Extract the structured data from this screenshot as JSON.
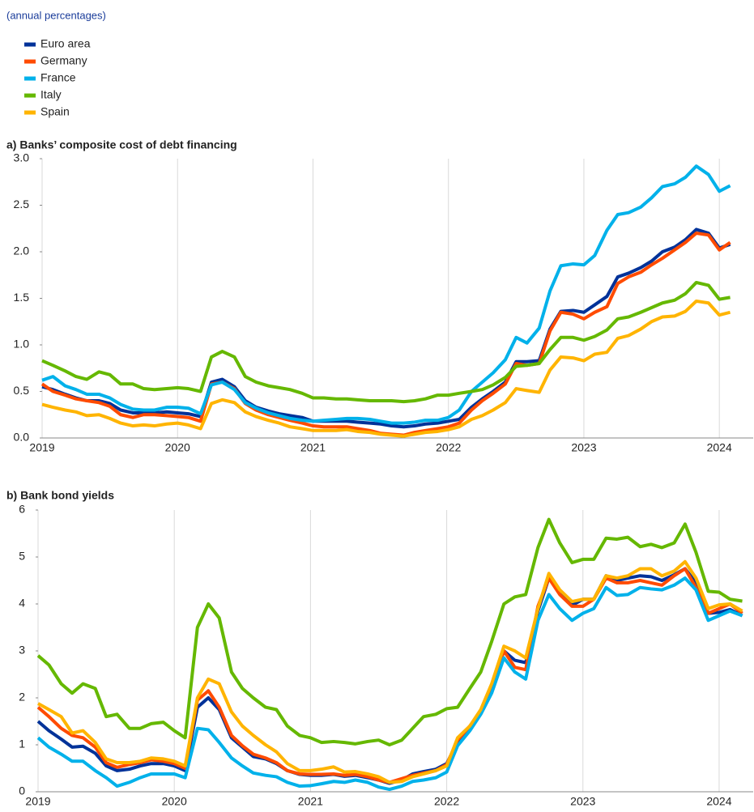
{
  "subtitle": "(annual percentages)",
  "chart_data": [
    {
      "type": "line",
      "title": "a) Banks’ composite cost of debt financing",
      "x": [
        2019,
        2019.08,
        2019.17,
        2019.25,
        2019.33,
        2019.42,
        2019.5,
        2019.58,
        2019.67,
        2019.75,
        2019.83,
        2019.92,
        2020,
        2020.08,
        2020.17,
        2020.25,
        2020.33,
        2020.42,
        2020.5,
        2020.58,
        2020.67,
        2020.75,
        2020.83,
        2020.92,
        2021,
        2021.08,
        2021.17,
        2021.25,
        2021.33,
        2021.42,
        2021.5,
        2021.58,
        2021.67,
        2021.75,
        2021.83,
        2021.92,
        2022,
        2022.08,
        2022.17,
        2022.25,
        2022.33,
        2022.42,
        2022.5,
        2022.58,
        2022.67,
        2022.75,
        2022.83,
        2022.92,
        2023,
        2023.08,
        2023.17,
        2023.25,
        2023.33,
        2023.42,
        2023.5,
        2023.58,
        2023.67,
        2023.75,
        2023.83,
        2023.92,
        2024,
        2024.08
      ],
      "xlim": [
        2019,
        2024.25
      ],
      "xticks": [
        2019,
        2020,
        2021,
        2022,
        2023,
        2024
      ],
      "ylim": [
        0,
        3
      ],
      "yticks": [
        {
          "value": 0,
          "label": "0.0"
        },
        0.5,
        {
          "value": 1,
          "label": "1.0"
        },
        1.5,
        {
          "value": 2,
          "label": "2.0"
        },
        2.5,
        {
          "value": 3,
          "label": "3.0"
        }
      ],
      "grid": true,
      "series": [
        {
          "name": "Euro area",
          "color": "#003299",
          "values": [
            0.55,
            0.52,
            0.47,
            0.43,
            0.4,
            0.4,
            0.37,
            0.3,
            0.27,
            0.27,
            0.27,
            0.28,
            0.27,
            0.26,
            0.23,
            0.6,
            0.63,
            0.55,
            0.4,
            0.33,
            0.29,
            0.26,
            0.24,
            0.22,
            0.18,
            0.18,
            0.18,
            0.18,
            0.17,
            0.16,
            0.15,
            0.13,
            0.12,
            0.13,
            0.15,
            0.16,
            0.18,
            0.2,
            0.33,
            0.42,
            0.5,
            0.6,
            0.82,
            0.82,
            0.83,
            1.17,
            1.36,
            1.37,
            1.35,
            1.43,
            1.52,
            1.73,
            1.77,
            1.83,
            1.9,
            2.0,
            2.05,
            2.13,
            2.24,
            2.2,
            2.04,
            2.08
          ]
        },
        {
          "name": "Germany",
          "color": "#ff4b00",
          "values": [
            0.58,
            0.5,
            0.46,
            0.42,
            0.4,
            0.38,
            0.34,
            0.25,
            0.22,
            0.25,
            0.25,
            0.24,
            0.23,
            0.22,
            0.18,
            0.58,
            0.6,
            0.53,
            0.37,
            0.3,
            0.25,
            0.22,
            0.19,
            0.16,
            0.13,
            0.12,
            0.12,
            0.12,
            0.1,
            0.08,
            0.05,
            0.04,
            0.03,
            0.06,
            0.08,
            0.1,
            0.12,
            0.16,
            0.3,
            0.4,
            0.48,
            0.58,
            0.8,
            0.78,
            0.8,
            1.15,
            1.35,
            1.33,
            1.28,
            1.35,
            1.41,
            1.66,
            1.73,
            1.78,
            1.86,
            1.93,
            2.02,
            2.1,
            2.2,
            2.18,
            2.02,
            2.1
          ]
        },
        {
          "name": "France",
          "color": "#00b1ea",
          "values": [
            0.62,
            0.66,
            0.56,
            0.52,
            0.47,
            0.47,
            0.43,
            0.36,
            0.31,
            0.3,
            0.3,
            0.33,
            0.33,
            0.32,
            0.26,
            0.57,
            0.6,
            0.52,
            0.38,
            0.32,
            0.27,
            0.24,
            0.21,
            0.19,
            0.18,
            0.19,
            0.2,
            0.21,
            0.21,
            0.2,
            0.18,
            0.16,
            0.16,
            0.17,
            0.19,
            0.19,
            0.22,
            0.3,
            0.5,
            0.6,
            0.7,
            0.84,
            1.08,
            1.02,
            1.18,
            1.58,
            1.85,
            1.87,
            1.86,
            1.96,
            2.23,
            2.4,
            2.42,
            2.48,
            2.58,
            2.7,
            2.73,
            2.8,
            2.92,
            2.83,
            2.65,
            2.71
          ]
        },
        {
          "name": "Italy",
          "color": "#65b800",
          "values": [
            0.83,
            0.78,
            0.72,
            0.66,
            0.63,
            0.71,
            0.68,
            0.58,
            0.58,
            0.53,
            0.52,
            0.53,
            0.54,
            0.53,
            0.5,
            0.87,
            0.93,
            0.87,
            0.66,
            0.6,
            0.56,
            0.54,
            0.52,
            0.48,
            0.43,
            0.43,
            0.42,
            0.42,
            0.41,
            0.4,
            0.4,
            0.4,
            0.39,
            0.4,
            0.42,
            0.46,
            0.46,
            0.48,
            0.5,
            0.52,
            0.57,
            0.65,
            0.77,
            0.78,
            0.8,
            0.95,
            1.08,
            1.08,
            1.05,
            1.09,
            1.16,
            1.28,
            1.3,
            1.35,
            1.4,
            1.45,
            1.48,
            1.55,
            1.67,
            1.64,
            1.49,
            1.51
          ]
        },
        {
          "name": "Spain",
          "color": "#ffb400",
          "values": [
            0.36,
            0.33,
            0.3,
            0.28,
            0.24,
            0.25,
            0.21,
            0.16,
            0.13,
            0.14,
            0.13,
            0.15,
            0.16,
            0.14,
            0.1,
            0.37,
            0.41,
            0.38,
            0.28,
            0.23,
            0.19,
            0.16,
            0.12,
            0.1,
            0.08,
            0.08,
            0.08,
            0.09,
            0.07,
            0.06,
            0.04,
            0.03,
            0.02,
            0.04,
            0.06,
            0.07,
            0.09,
            0.12,
            0.2,
            0.24,
            0.3,
            0.38,
            0.53,
            0.51,
            0.49,
            0.73,
            0.87,
            0.86,
            0.83,
            0.9,
            0.92,
            1.07,
            1.1,
            1.17,
            1.25,
            1.3,
            1.31,
            1.36,
            1.47,
            1.45,
            1.32,
            1.35
          ]
        }
      ]
    },
    {
      "type": "line",
      "title": "b) Bank bond yields",
      "x": [
        2019,
        2019.08,
        2019.17,
        2019.25,
        2019.33,
        2019.42,
        2019.5,
        2019.58,
        2019.67,
        2019.75,
        2019.83,
        2019.92,
        2020,
        2020.08,
        2020.17,
        2020.25,
        2020.33,
        2020.42,
        2020.5,
        2020.58,
        2020.67,
        2020.75,
        2020.83,
        2020.92,
        2021,
        2021.08,
        2021.17,
        2021.25,
        2021.33,
        2021.42,
        2021.5,
        2021.58,
        2021.67,
        2021.75,
        2021.83,
        2021.92,
        2022,
        2022.08,
        2022.17,
        2022.25,
        2022.33,
        2022.42,
        2022.5,
        2022.58,
        2022.67,
        2022.75,
        2022.83,
        2022.92,
        2023,
        2023.08,
        2023.17,
        2023.25,
        2023.33,
        2023.42,
        2023.5,
        2023.58,
        2023.67,
        2023.75,
        2023.83,
        2023.92,
        2024,
        2024.08,
        2024.17
      ],
      "xlim": [
        2019,
        2024.25
      ],
      "xticks": [
        2019,
        2020,
        2021,
        2022,
        2023,
        2024
      ],
      "ylim": [
        0,
        6
      ],
      "yticks": [
        0,
        1,
        2,
        3,
        4,
        5,
        6
      ],
      "grid": true,
      "series": [
        {
          "name": "Euro area",
          "color": "#003299",
          "values": [
            1.5,
            1.3,
            1.12,
            0.95,
            0.97,
            0.82,
            0.55,
            0.45,
            0.48,
            0.55,
            0.6,
            0.6,
            0.55,
            0.45,
            1.8,
            2.0,
            1.75,
            1.15,
            0.95,
            0.75,
            0.7,
            0.6,
            0.45,
            0.37,
            0.35,
            0.35,
            0.37,
            0.33,
            0.35,
            0.3,
            0.25,
            0.18,
            0.25,
            0.38,
            0.43,
            0.48,
            0.6,
            1.05,
            1.35,
            1.7,
            2.2,
            3.0,
            2.8,
            2.75,
            3.85,
            4.55,
            4.25,
            3.97,
            4.1,
            4.1,
            4.6,
            4.5,
            4.55,
            4.6,
            4.58,
            4.5,
            4.62,
            4.75,
            4.45,
            3.8,
            3.82,
            3.88,
            3.75
          ]
        },
        {
          "name": "Germany",
          "color": "#ff4b00",
          "values": [
            1.8,
            1.6,
            1.35,
            1.2,
            1.15,
            0.95,
            0.62,
            0.52,
            0.58,
            0.62,
            0.68,
            0.65,
            0.6,
            0.5,
            1.95,
            2.15,
            1.8,
            1.2,
            0.98,
            0.8,
            0.72,
            0.62,
            0.45,
            0.38,
            0.37,
            0.37,
            0.38,
            0.35,
            0.37,
            0.32,
            0.25,
            0.2,
            0.28,
            0.35,
            0.4,
            0.45,
            0.58,
            1.1,
            1.4,
            1.72,
            2.25,
            3.0,
            2.65,
            2.6,
            3.95,
            4.55,
            4.2,
            3.95,
            3.95,
            4.1,
            4.55,
            4.45,
            4.45,
            4.5,
            4.45,
            4.4,
            4.6,
            4.75,
            4.35,
            3.8,
            3.9,
            4.0,
            3.8
          ]
        },
        {
          "name": "France",
          "color": "#00b1ea",
          "values": [
            1.15,
            0.95,
            0.8,
            0.65,
            0.65,
            0.45,
            0.3,
            0.12,
            0.2,
            0.3,
            0.38,
            0.38,
            0.38,
            0.3,
            1.35,
            1.32,
            1.05,
            0.72,
            0.55,
            0.4,
            0.35,
            0.32,
            0.2,
            0.12,
            0.13,
            0.17,
            0.22,
            0.2,
            0.25,
            0.2,
            0.1,
            0.05,
            0.12,
            0.22,
            0.25,
            0.3,
            0.42,
            0.98,
            1.3,
            1.65,
            2.1,
            2.85,
            2.55,
            2.4,
            3.65,
            4.2,
            3.9,
            3.65,
            3.8,
            3.9,
            4.35,
            4.18,
            4.2,
            4.35,
            4.32,
            4.3,
            4.4,
            4.55,
            4.3,
            3.65,
            3.75,
            3.85,
            3.75
          ]
        },
        {
          "name": "Italy",
          "color": "#65b800",
          "values": [
            2.9,
            2.7,
            2.3,
            2.1,
            2.3,
            2.2,
            1.6,
            1.65,
            1.35,
            1.35,
            1.45,
            1.48,
            1.3,
            1.15,
            3.5,
            4.0,
            3.7,
            2.55,
            2.2,
            2.0,
            1.8,
            1.75,
            1.4,
            1.2,
            1.15,
            1.05,
            1.07,
            1.05,
            1.02,
            1.07,
            1.1,
            1.0,
            1.1,
            1.35,
            1.6,
            1.65,
            1.77,
            1.8,
            2.2,
            2.55,
            3.2,
            4.0,
            4.15,
            4.2,
            5.2,
            5.8,
            5.3,
            4.88,
            4.95,
            4.95,
            5.4,
            5.38,
            5.42,
            5.22,
            5.27,
            5.2,
            5.3,
            5.7,
            5.1,
            4.27,
            4.25,
            4.1,
            4.06
          ]
        },
        {
          "name": "Spain",
          "color": "#ffb400",
          "values": [
            1.88,
            1.75,
            1.6,
            1.25,
            1.3,
            1.05,
            0.7,
            0.62,
            0.62,
            0.65,
            0.72,
            0.7,
            0.65,
            0.55,
            2.0,
            2.4,
            2.3,
            1.7,
            1.4,
            1.2,
            1.0,
            0.85,
            0.6,
            0.45,
            0.45,
            0.48,
            0.53,
            0.42,
            0.43,
            0.38,
            0.32,
            0.2,
            0.22,
            0.32,
            0.38,
            0.45,
            0.55,
            1.15,
            1.4,
            1.75,
            2.3,
            3.1,
            3.0,
            2.85,
            3.9,
            4.65,
            4.3,
            4.05,
            4.1,
            4.1,
            4.6,
            4.55,
            4.6,
            4.75,
            4.75,
            4.6,
            4.7,
            4.9,
            4.55,
            3.9,
            3.98,
            4.0,
            3.85
          ]
        }
      ]
    }
  ]
}
